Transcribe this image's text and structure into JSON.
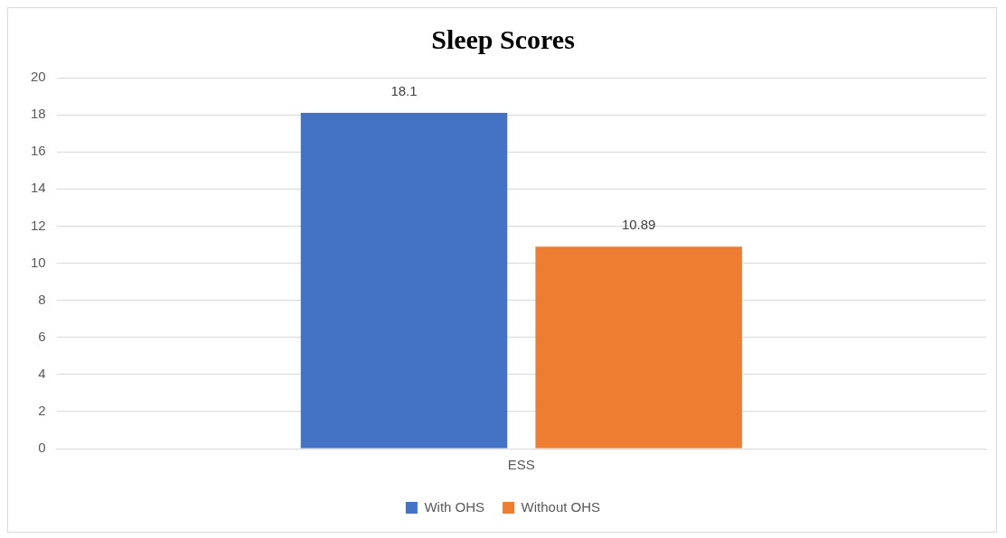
{
  "chart_data": {
    "type": "bar",
    "title": "Sleep Scores",
    "categories": [
      "ESS"
    ],
    "series": [
      {
        "name": "With OHS",
        "color": "#4472c4",
        "values": [
          18.1
        ]
      },
      {
        "name": "Without OHS",
        "color": "#ed7d31",
        "values": [
          10.89
        ]
      }
    ],
    "ylim": [
      0,
      20
    ],
    "yticks": [
      0,
      2,
      4,
      6,
      8,
      10,
      12,
      14,
      16,
      18,
      20
    ],
    "grid": "y",
    "legend": "bottom",
    "data_labels": true
  }
}
